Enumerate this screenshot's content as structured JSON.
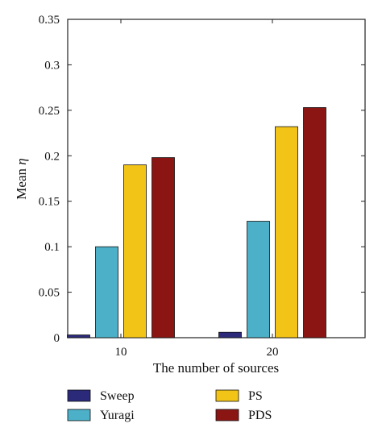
{
  "chart_data": {
    "type": "bar",
    "title": "",
    "xlabel": "The number of sources",
    "ylabel_prefix": "Mean ",
    "ylabel_symbol": "η",
    "categories": [
      "10",
      "20"
    ],
    "ylim": [
      0,
      0.35
    ],
    "yticks": [
      "0",
      "0.05",
      "0.1",
      "0.15",
      "0.2",
      "0.25",
      "0.3",
      "0.35"
    ],
    "grid": false,
    "legend_position": "bottom",
    "series": [
      {
        "name": "Sweep",
        "color": "#2b2a7a",
        "values": [
          0.003,
          0.006
        ]
      },
      {
        "name": "Yuragi",
        "color": "#4bb0c8",
        "values": [
          0.1,
          0.128
        ]
      },
      {
        "name": "PS",
        "color": "#f2c417",
        "values": [
          0.19,
          0.232
        ]
      },
      {
        "name": "PDS",
        "color": "#8b1513",
        "values": [
          0.198,
          0.253
        ]
      }
    ]
  }
}
